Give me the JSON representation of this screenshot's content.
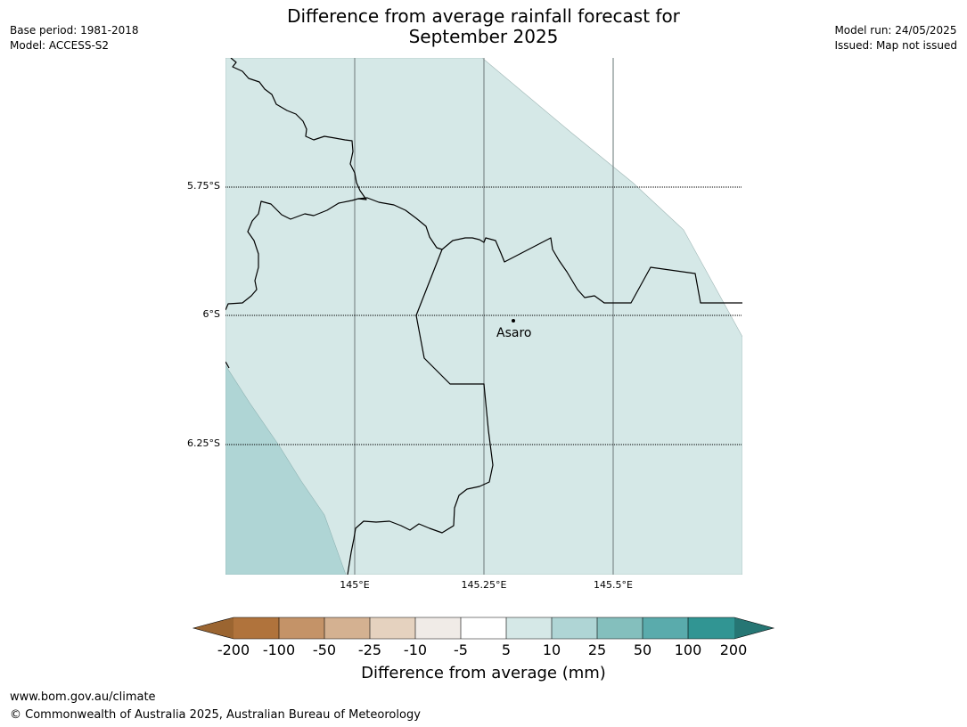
{
  "title": {
    "line1": "Difference from average rainfall forecast for",
    "line2": "September 2025"
  },
  "meta": {
    "base_period": "Base period: 1981-2018",
    "model": "Model: ACCESS-S2",
    "model_run": "Model run: 24/05/2025",
    "issued": "Issued: Map not issued"
  },
  "map": {
    "latitude_labels": [
      "5.75°S",
      "6°S",
      "6.25°S"
    ],
    "longitude_labels": [
      "145°E",
      "145.25°E",
      "145.5°E"
    ],
    "place": "Asaro",
    "colors": {
      "region_5_10": "#d5e8e7",
      "region_10_25": "#afd5d5",
      "border": "#000000",
      "gridline": "#7f8c8b"
    }
  },
  "colorbar": {
    "title": "Difference from average (mm)",
    "ticks": [
      "-200",
      "-100",
      "-50",
      "-25",
      "-10",
      "-5",
      "5",
      "10",
      "25",
      "50",
      "100",
      "200"
    ],
    "colors": [
      "#9b6531",
      "#b0733c",
      "#c49368",
      "#d4b191",
      "#e5d2bf",
      "#f0ebe7",
      "#ffffff",
      "#d5e8e7",
      "#afd5d5",
      "#84bfbd",
      "#5aabac",
      "#319593",
      "#267674"
    ]
  },
  "footer": {
    "url": "www.bom.gov.au/climate",
    "copyright": "© Commonwealth of Australia 2025, Australian Bureau of Meteorology"
  }
}
